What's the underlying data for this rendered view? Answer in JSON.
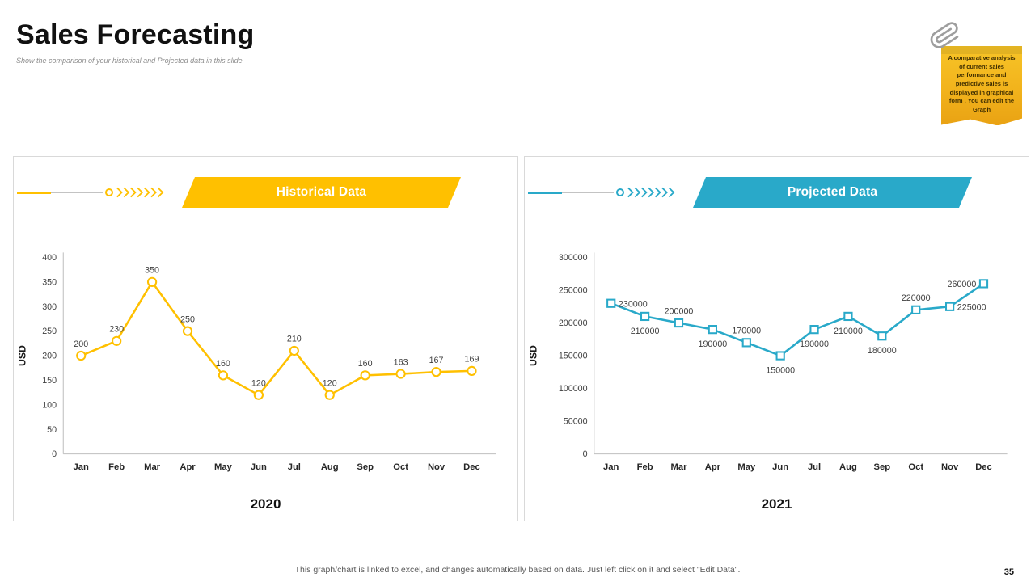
{
  "slide": {
    "title": "Sales Forecasting",
    "subtitle": "Show the comparison of your historical and Projected data in this slide.",
    "footer": "This graph/chart is linked to excel, and changes automatically based on data. Just left click on it and select \"Edit Data\".",
    "page_number": "35"
  },
  "note": {
    "text": "A comparative analysis of current sales performance and predictive sales is displayed in graphical form . You can edit the Graph",
    "bg": "#F2B31C"
  },
  "chart_data": [
    {
      "type": "line",
      "title": "Historical Data",
      "year": "2020",
      "ylabel": "USD",
      "accent": "#FFC000",
      "marker": "circle",
      "grid": false,
      "legend": "none",
      "categories": [
        "Jan",
        "Feb",
        "Mar",
        "Apr",
        "May",
        "Jun",
        "Jul",
        "Aug",
        "Sep",
        "Oct",
        "Nov",
        "Dec"
      ],
      "values": [
        200,
        230,
        350,
        250,
        160,
        120,
        210,
        120,
        160,
        163,
        167,
        169
      ],
      "ylim": [
        0,
        400
      ],
      "ytick_step": 50,
      "label_positions": [
        "above",
        "above",
        "above",
        "above",
        "above",
        "above",
        "above",
        "above",
        "above",
        "above",
        "above",
        "above"
      ]
    },
    {
      "type": "line",
      "title": "Projected Data",
      "year": "2021",
      "ylabel": "USD",
      "accent": "#29A9C9",
      "marker": "square",
      "grid": false,
      "legend": "none",
      "categories": [
        "Jan",
        "Feb",
        "Mar",
        "Apr",
        "May",
        "Jun",
        "Jul",
        "Aug",
        "Sep",
        "Oct",
        "Nov",
        "Dec"
      ],
      "values": [
        230000,
        210000,
        200000,
        190000,
        170000,
        150000,
        190000,
        210000,
        180000,
        220000,
        225000,
        260000
      ],
      "ylim": [
        0,
        300000
      ],
      "ytick_step": 50000,
      "label_positions": [
        "right",
        "below",
        "above",
        "below",
        "above",
        "below",
        "below",
        "below",
        "below",
        "above",
        "right",
        "left"
      ]
    }
  ]
}
